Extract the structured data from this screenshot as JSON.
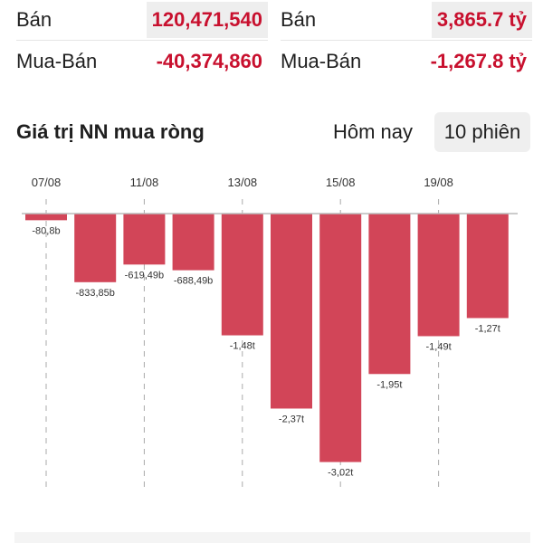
{
  "stats": {
    "left": [
      {
        "label": "Bán",
        "value": "120,471,540"
      },
      {
        "label": "Mua-Bán",
        "value": "-40,374,860"
      }
    ],
    "right": [
      {
        "label": "Bán",
        "value": "3,865.7 tỷ"
      },
      {
        "label": "Mua-Bán",
        "value": "-1,267.8 tỷ"
      }
    ]
  },
  "section": {
    "title": "Giá trị NN mua ròng",
    "tabs": [
      {
        "label": "Hôm nay",
        "active": false
      },
      {
        "label": "10 phiên",
        "active": true
      }
    ]
  },
  "colors": {
    "negative": "#c8102e",
    "bar": "#d24558",
    "axis": "#bbbbbb"
  },
  "chart_data": {
    "type": "bar",
    "x_ticks": [
      "07/08",
      "11/08",
      "13/08",
      "15/08",
      "19/08"
    ],
    "values": [
      -80.8,
      -833.85,
      -619.49,
      -688.49,
      -1480,
      -2370,
      -3020,
      -1950,
      -1490,
      -1270
    ],
    "data_labels": [
      "-80,8b",
      "-833,85b",
      "-619,49b",
      "-688,49b",
      "-1,48t",
      "-2,37t",
      "-3,02t",
      "-1,95t",
      "-1,49t",
      "-1,27t"
    ],
    "unit": "tỷ",
    "ylim": [
      -3300,
      0
    ]
  }
}
